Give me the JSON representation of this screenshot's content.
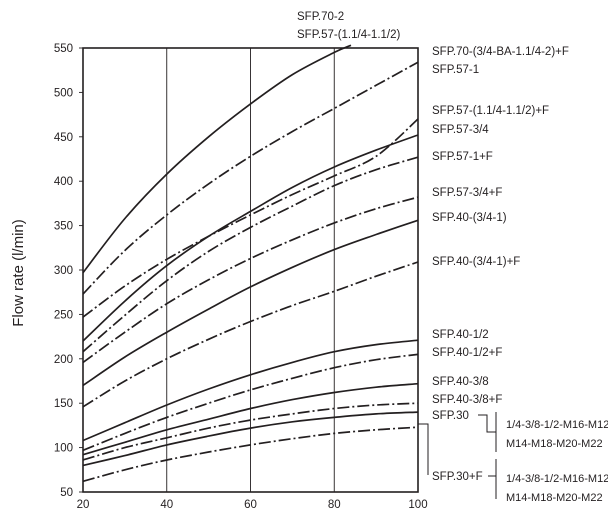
{
  "chart_data": {
    "type": "line",
    "title": "",
    "xlabel": "",
    "ylabel": "Flow rate (l/min)",
    "xlim": [
      20,
      100
    ],
    "ylim": [
      50,
      550
    ],
    "x_ticks": [
      "20",
      "40",
      "60",
      "80",
      "100"
    ],
    "y_ticks": [
      "50",
      "100",
      "150",
      "200",
      "250",
      "300",
      "350",
      "400",
      "450",
      "500",
      "550"
    ],
    "grid": true,
    "series": [
      {
        "name": "SFP.70-2 / SFP.57-(1.1/4-1.1/2)",
        "style": "solid",
        "x": [
          20,
          30,
          40,
          50,
          60,
          70,
          80,
          84
        ],
        "y": [
          297,
          358,
          408,
          450,
          487,
          520,
          545,
          553
        ]
      },
      {
        "name": "SFP.70-(3/4-BA-1.1/4-2)+F / SFP.57-1",
        "style": "dashdot",
        "x": [
          20,
          30,
          40,
          50,
          60,
          70,
          80,
          90,
          100
        ],
        "y": [
          273,
          322,
          362,
          397,
          428,
          456,
          482,
          508,
          534
        ]
      },
      {
        "name": "SFP.57-(1.1/4-1.1/2)+F",
        "style": "dashdot",
        "x": [
          20,
          30,
          40,
          50,
          60,
          70,
          80,
          90,
          100
        ],
        "y": [
          247,
          282,
          312,
          338,
          362,
          385,
          406,
          428,
          470
        ]
      },
      {
        "name": "SFP.57-3/4",
        "style": "solid",
        "x": [
          20,
          30,
          40,
          50,
          60,
          70,
          80,
          90,
          100
        ],
        "y": [
          220,
          265,
          305,
          338,
          366,
          393,
          416,
          435,
          452
        ]
      },
      {
        "name": "SFP.57-1+F",
        "style": "dashdot",
        "x": [
          20,
          30,
          40,
          50,
          60,
          70,
          80,
          90,
          100
        ],
        "y": [
          208,
          249,
          288,
          321,
          348,
          372,
          395,
          413,
          427
        ]
      },
      {
        "name": "SFP.57-3/4+F",
        "style": "dashdot",
        "x": [
          20,
          30,
          40,
          50,
          60,
          70,
          80,
          90,
          100
        ],
        "y": [
          196,
          230,
          262,
          289,
          313,
          334,
          353,
          369,
          382
        ]
      },
      {
        "name": "SFP.40-(3/4-1)",
        "style": "solid",
        "x": [
          20,
          30,
          40,
          50,
          60,
          70,
          80,
          90,
          100
        ],
        "y": [
          170,
          202,
          230,
          256,
          281,
          303,
          323,
          340,
          356
        ]
      },
      {
        "name": "SFP.40-(3/4-1)+F",
        "style": "dashdot",
        "x": [
          20,
          30,
          40,
          50,
          60,
          70,
          80,
          90,
          100
        ],
        "y": [
          146,
          175,
          200,
          222,
          242,
          260,
          276,
          293,
          309
        ]
      },
      {
        "name": "SFP.40-1/2",
        "style": "solid",
        "x": [
          20,
          30,
          40,
          50,
          60,
          70,
          80,
          90,
          100
        ],
        "y": [
          108,
          128,
          148,
          166,
          182,
          196,
          208,
          216,
          221
        ]
      },
      {
        "name": "SFP.40-1/2+F",
        "style": "dashdot",
        "x": [
          20,
          30,
          40,
          50,
          60,
          70,
          80,
          90,
          100
        ],
        "y": [
          97,
          116,
          134,
          150,
          165,
          178,
          190,
          199,
          205
        ]
      },
      {
        "name": "SFP.40-3/8",
        "style": "solid",
        "x": [
          20,
          30,
          40,
          50,
          60,
          70,
          80,
          90,
          100
        ],
        "y": [
          92,
          106,
          120,
          132,
          144,
          154,
          162,
          168,
          172
        ]
      },
      {
        "name": "SFP.40-3/8+F",
        "style": "dashdot",
        "x": [
          20,
          30,
          40,
          50,
          60,
          70,
          80,
          90,
          100
        ],
        "y": [
          86,
          100,
          111,
          122,
          131,
          138,
          144,
          148,
          150
        ]
      },
      {
        "name": "SFP.30 (1/4-3/8-1/2-M16-M12 M14-M18-M20-M22)",
        "style": "solid",
        "x": [
          20,
          30,
          40,
          50,
          60,
          70,
          80,
          90,
          100
        ],
        "y": [
          80,
          91,
          103,
          113,
          122,
          129,
          134,
          138,
          140
        ]
      },
      {
        "name": "SFP.30+F (1/4-3/8-1/2-M16-M12 M14-M18-M20-M22)",
        "style": "dashdot",
        "x": [
          20,
          30,
          40,
          50,
          60,
          70,
          80,
          90,
          100
        ],
        "y": [
          62,
          75,
          86,
          95,
          103,
          110,
          116,
          120,
          123
        ]
      }
    ],
    "labels": {
      "top_line1": "SFP.70-2",
      "top_line2": "SFP.57-(1.1/4-1.1/2)",
      "r1": "SFP.70-(3/4-BA-1.1/4-2)+F",
      "r2": "SFP.57-1",
      "r3": "SFP.57-(1.1/4-1.1/2)+F",
      "r4": "SFP.57-3/4",
      "r5": "SFP.57-1+F",
      "r6": "SFP.57-3/4+F",
      "r7": "SFP.40-(3/4-1)",
      "r8": "SFP.40-(3/4-1)+F",
      "r9": "SFP.40-1/2",
      "r10": "SFP.40-1/2+F",
      "r11": "SFP.40-3/8",
      "r12": "SFP.40-3/8+F",
      "r13": "SFP.30",
      "r13_sub1": "1/4-3/8-1/2-M16-M12",
      "r13_sub2": "M14-M18-M20-M22",
      "r14": "SFP.30+F",
      "r14_sub1": "1/4-3/8-1/2-M16-M12",
      "r14_sub2": "M14-M18-M20-M22"
    }
  }
}
